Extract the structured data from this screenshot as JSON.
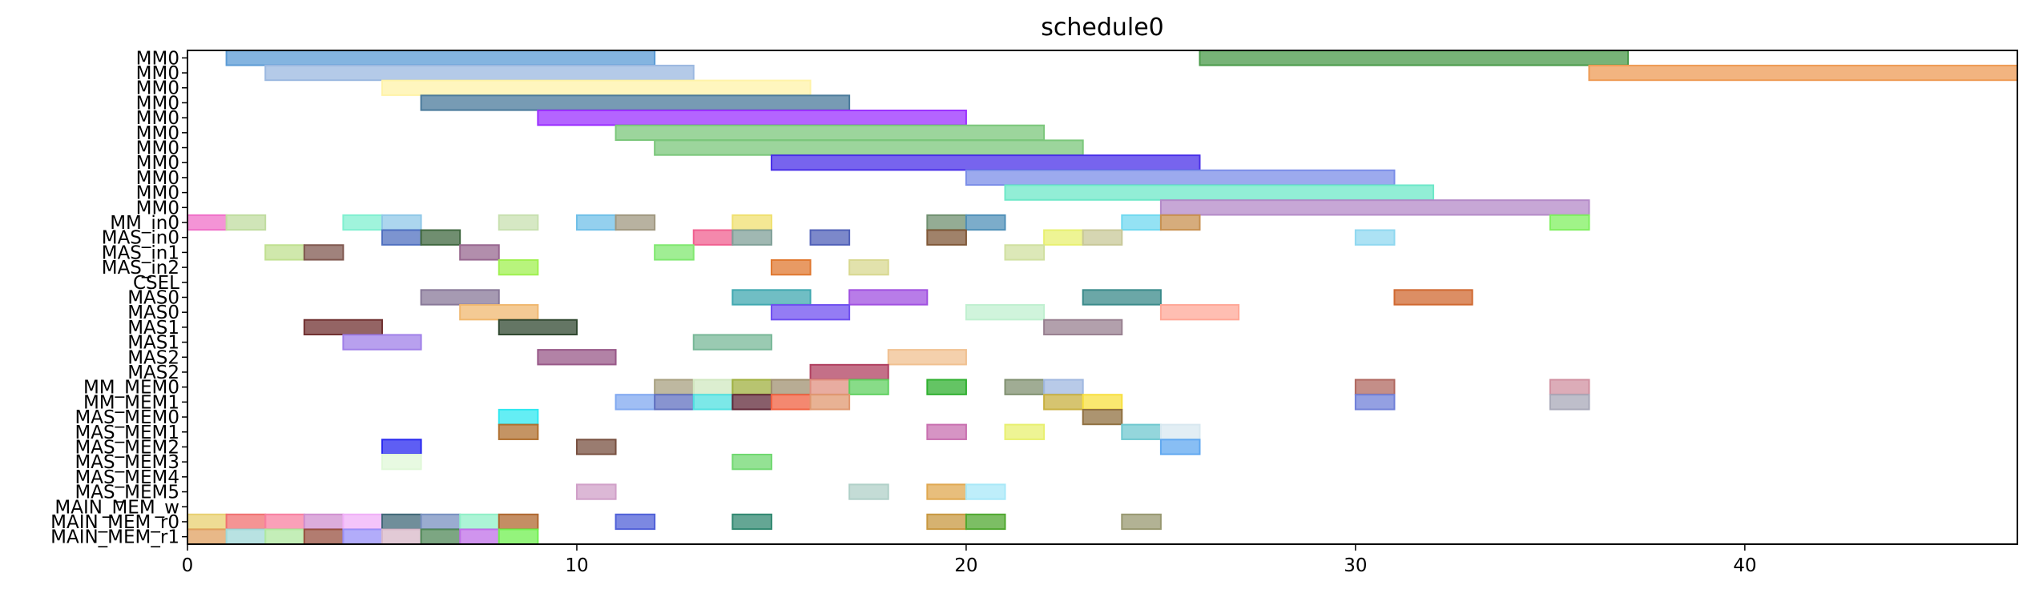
{
  "chart_data": {
    "type": "gantt",
    "title": "schedule0",
    "xlabel": "",
    "ylabel": "",
    "xlim": [
      0,
      47
    ],
    "xticks": [
      0,
      10,
      20,
      30,
      40
    ],
    "grid": false,
    "rows": [
      "MM0",
      "MM0",
      "MM0",
      "MM0",
      "MM0",
      "MM0",
      "MM0",
      "MM0",
      "MM0",
      "MM0",
      "MM0",
      "MM_in0",
      "MAS_in0",
      "MAS_in1",
      "MAS_in2",
      "CSEL",
      "MAS0",
      "MAS0",
      "MAS1",
      "MAS1",
      "MAS2",
      "MAS2",
      "MM_MEM0",
      "MM_MEM1",
      "MAS_MEM0",
      "MAS_MEM1",
      "MAS_MEM2",
      "MAS_MEM3",
      "MAS_MEM4",
      "MAS_MEM5",
      "MAIN_MEM_w",
      "MAIN_MEM_r0",
      "MAIN_MEM_r1"
    ],
    "tasks": [
      {
        "row": 0,
        "start": 1,
        "end": 12,
        "color": "#5b9bd5"
      },
      {
        "row": 0,
        "start": 26,
        "end": 37,
        "color": "#4a9a4a"
      },
      {
        "row": 1,
        "start": 2,
        "end": 13,
        "color": "#9bb8e0"
      },
      {
        "row": 1,
        "start": 36,
        "end": 47,
        "color": "#ee9b55"
      },
      {
        "row": 2,
        "start": 5,
        "end": 16,
        "color": "#fff3a8"
      },
      {
        "row": 3,
        "start": 6,
        "end": 17,
        "color": "#4a7a9b"
      },
      {
        "row": 4,
        "start": 9,
        "end": 20,
        "color": "#9b30ff"
      },
      {
        "row": 5,
        "start": 11,
        "end": 22,
        "color": "#7bc77b"
      },
      {
        "row": 6,
        "start": 12,
        "end": 23,
        "color": "#7bc77b"
      },
      {
        "row": 7,
        "start": 15,
        "end": 26,
        "color": "#4a30e8"
      },
      {
        "row": 8,
        "start": 20,
        "end": 31,
        "color": "#7b8ee8"
      },
      {
        "row": 9,
        "start": 21,
        "end": 32,
        "color": "#6ee8c8"
      },
      {
        "row": 10,
        "start": 25,
        "end": 36,
        "color": "#b48ac8"
      },
      {
        "row": 11,
        "start": 0,
        "end": 1,
        "color": "#f070c8"
      },
      {
        "row": 11,
        "start": 1,
        "end": 2,
        "color": "#c0dca0"
      },
      {
        "row": 11,
        "start": 4,
        "end": 5,
        "color": "#80f0d0"
      },
      {
        "row": 11,
        "start": 5,
        "end": 6,
        "color": "#90c8e8"
      },
      {
        "row": 11,
        "start": 8,
        "end": 9,
        "color": "#c8e0b0"
      },
      {
        "row": 11,
        "start": 10,
        "end": 11,
        "color": "#70c0e8"
      },
      {
        "row": 11,
        "start": 11,
        "end": 12,
        "color": "#a09880"
      },
      {
        "row": 11,
        "start": 14,
        "end": 15,
        "color": "#f0e070"
      },
      {
        "row": 11,
        "start": 19,
        "end": 20,
        "color": "#709070"
      },
      {
        "row": 11,
        "start": 20,
        "end": 21,
        "color": "#5090b8"
      },
      {
        "row": 11,
        "start": 24,
        "end": 25,
        "color": "#70d8f0"
      },
      {
        "row": 11,
        "start": 25,
        "end": 26,
        "color": "#c89050"
      },
      {
        "row": 11,
        "start": 35,
        "end": 36,
        "color": "#80f060"
      },
      {
        "row": 12,
        "start": 5,
        "end": 6,
        "color": "#5070c0"
      },
      {
        "row": 12,
        "start": 6,
        "end": 7,
        "color": "#406840"
      },
      {
        "row": 12,
        "start": 13,
        "end": 14,
        "color": "#f06090"
      },
      {
        "row": 12,
        "start": 14,
        "end": 15,
        "color": "#80a098"
      },
      {
        "row": 12,
        "start": 16,
        "end": 17,
        "color": "#5060b8"
      },
      {
        "row": 12,
        "start": 19,
        "end": 20,
        "color": "#805838"
      },
      {
        "row": 12,
        "start": 22,
        "end": 23,
        "color": "#e8f070"
      },
      {
        "row": 12,
        "start": 23,
        "end": 24,
        "color": "#c8c898"
      },
      {
        "row": 12,
        "start": 30,
        "end": 31,
        "color": "#90d8f0"
      },
      {
        "row": 13,
        "start": 2,
        "end": 3,
        "color": "#c0e090"
      },
      {
        "row": 13,
        "start": 3,
        "end": 4,
        "color": "#805850"
      },
      {
        "row": 13,
        "start": 7,
        "end": 8,
        "color": "#986890"
      },
      {
        "row": 13,
        "start": 12,
        "end": 13,
        "color": "#80e870"
      },
      {
        "row": 13,
        "start": 21,
        "end": 22,
        "color": "#d0e0a0"
      },
      {
        "row": 14,
        "start": 8,
        "end": 9,
        "color": "#a0f050"
      },
      {
        "row": 14,
        "start": 15,
        "end": 16,
        "color": "#e07830"
      },
      {
        "row": 14,
        "start": 17,
        "end": 18,
        "color": "#d8d890"
      },
      {
        "row": 16,
        "start": 6,
        "end": 8,
        "color": "#887898"
      },
      {
        "row": 16,
        "start": 14,
        "end": 16,
        "color": "#40a8b0"
      },
      {
        "row": 16,
        "start": 17,
        "end": 19,
        "color": "#a050e0"
      },
      {
        "row": 16,
        "start": 23,
        "end": 25,
        "color": "#3a8a8a"
      },
      {
        "row": 16,
        "start": 31,
        "end": 33,
        "color": "#d06830"
      },
      {
        "row": 17,
        "start": 7,
        "end": 9,
        "color": "#f0b870"
      },
      {
        "row": 17,
        "start": 15,
        "end": 17,
        "color": "#7050f0"
      },
      {
        "row": 17,
        "start": 20,
        "end": 22,
        "color": "#c0f0d0"
      },
      {
        "row": 17,
        "start": 25,
        "end": 27,
        "color": "#ffa898"
      },
      {
        "row": 18,
        "start": 3,
        "end": 5,
        "color": "#703030"
      },
      {
        "row": 18,
        "start": 8,
        "end": 10,
        "color": "#304830"
      },
      {
        "row": 18,
        "start": 22,
        "end": 24,
        "color": "#988090"
      },
      {
        "row": 19,
        "start": 4,
        "end": 6,
        "color": "#a080e8"
      },
      {
        "row": 19,
        "start": 13,
        "end": 15,
        "color": "#78b898"
      },
      {
        "row": 20,
        "start": 9,
        "end": 11,
        "color": "#985888"
      },
      {
        "row": 20,
        "start": 18,
        "end": 20,
        "color": "#f0c090"
      },
      {
        "row": 21,
        "start": 16,
        "end": 18,
        "color": "#b04060"
      },
      {
        "row": 22,
        "start": 12,
        "end": 13,
        "color": "#a8a080"
      },
      {
        "row": 22,
        "start": 13,
        "end": 14,
        "color": "#d0e8c0"
      },
      {
        "row": 22,
        "start": 14,
        "end": 15,
        "color": "#a0b040"
      },
      {
        "row": 22,
        "start": 15,
        "end": 16,
        "color": "#a09070"
      },
      {
        "row": 22,
        "start": 16,
        "end": 17,
        "color": "#e09080"
      },
      {
        "row": 22,
        "start": 17,
        "end": 18,
        "color": "#60d060"
      },
      {
        "row": 22,
        "start": 19,
        "end": 20,
        "color": "#30b030"
      },
      {
        "row": 22,
        "start": 21,
        "end": 22,
        "color": "#809070"
      },
      {
        "row": 22,
        "start": 22,
        "end": 23,
        "color": "#a0b8e0"
      },
      {
        "row": 22,
        "start": 30,
        "end": 31,
        "color": "#b06860"
      },
      {
        "row": 22,
        "start": 35,
        "end": 36,
        "color": "#d090a0"
      },
      {
        "row": 23,
        "start": 11,
        "end": 12,
        "color": "#80a8f0"
      },
      {
        "row": 23,
        "start": 12,
        "end": 13,
        "color": "#6070c0"
      },
      {
        "row": 23,
        "start": 13,
        "end": 14,
        "color": "#50e0e0"
      },
      {
        "row": 23,
        "start": 14,
        "end": 15,
        "color": "#602838"
      },
      {
        "row": 23,
        "start": 15,
        "end": 16,
        "color": "#f06040"
      },
      {
        "row": 23,
        "start": 16,
        "end": 17,
        "color": "#e09870"
      },
      {
        "row": 23,
        "start": 22,
        "end": 23,
        "color": "#c8b040"
      },
      {
        "row": 23,
        "start": 23,
        "end": 24,
        "color": "#f8e040"
      },
      {
        "row": 23,
        "start": 30,
        "end": 31,
        "color": "#7080d8"
      },
      {
        "row": 23,
        "start": 35,
        "end": 36,
        "color": "#a8a8b8"
      },
      {
        "row": 24,
        "start": 8,
        "end": 9,
        "color": "#30e8f0"
      },
      {
        "row": 24,
        "start": 23,
        "end": 24,
        "color": "#907040"
      },
      {
        "row": 25,
        "start": 8,
        "end": 9,
        "color": "#b07030"
      },
      {
        "row": 25,
        "start": 19,
        "end": 20,
        "color": "#c870b0"
      },
      {
        "row": 25,
        "start": 21,
        "end": 22,
        "color": "#e8f070"
      },
      {
        "row": 25,
        "start": 24,
        "end": 25,
        "color": "#70c8d0"
      },
      {
        "row": 25,
        "start": 25,
        "end": 26,
        "color": "#d8e8f0"
      },
      {
        "row": 26,
        "start": 5,
        "end": 6,
        "color": "#2828f0"
      },
      {
        "row": 26,
        "start": 10,
        "end": 11,
        "color": "#785040"
      },
      {
        "row": 26,
        "start": 25,
        "end": 26,
        "color": "#60a8f0"
      },
      {
        "row": 27,
        "start": 5,
        "end": 6,
        "color": "#e0f8d8"
      },
      {
        "row": 27,
        "start": 14,
        "end": 15,
        "color": "#70d870"
      },
      {
        "row": 29,
        "start": 10,
        "end": 11,
        "color": "#d0a0c8"
      },
      {
        "row": 29,
        "start": 17,
        "end": 18,
        "color": "#b0d0c8"
      },
      {
        "row": 29,
        "start": 19,
        "end": 20,
        "color": "#e0a850"
      },
      {
        "row": 29,
        "start": 20,
        "end": 21,
        "color": "#a8e8f8"
      },
      {
        "row": 31,
        "start": 0,
        "end": 1,
        "color": "#e8d070"
      },
      {
        "row": 31,
        "start": 1,
        "end": 2,
        "color": "#f07070"
      },
      {
        "row": 31,
        "start": 2,
        "end": 3,
        "color": "#f880a0"
      },
      {
        "row": 31,
        "start": 3,
        "end": 4,
        "color": "#d090d0"
      },
      {
        "row": 31,
        "start": 4,
        "end": 5,
        "color": "#f0b0f8"
      },
      {
        "row": 31,
        "start": 5,
        "end": 6,
        "color": "#406878"
      },
      {
        "row": 31,
        "start": 6,
        "end": 7,
        "color": "#7890c0"
      },
      {
        "row": 31,
        "start": 7,
        "end": 8,
        "color": "#90f0c8"
      },
      {
        "row": 31,
        "start": 8,
        "end": 9,
        "color": "#b06830"
      },
      {
        "row": 31,
        "start": 11,
        "end": 12,
        "color": "#5060d8"
      },
      {
        "row": 31,
        "start": 14,
        "end": 15,
        "color": "#308870"
      },
      {
        "row": 31,
        "start": 19,
        "end": 20,
        "color": "#c89840"
      },
      {
        "row": 31,
        "start": 20,
        "end": 21,
        "color": "#50a830"
      },
      {
        "row": 31,
        "start": 24,
        "end": 25,
        "color": "#989870"
      },
      {
        "row": 32,
        "start": 0,
        "end": 1,
        "color": "#e0a060"
      },
      {
        "row": 32,
        "start": 1,
        "end": 2,
        "color": "#a0d8d8"
      },
      {
        "row": 32,
        "start": 2,
        "end": 3,
        "color": "#b0e8a0"
      },
      {
        "row": 32,
        "start": 3,
        "end": 4,
        "color": "#985040"
      },
      {
        "row": 32,
        "start": 4,
        "end": 5,
        "color": "#9890f8"
      },
      {
        "row": 32,
        "start": 5,
        "end": 6,
        "color": "#d8b8c8"
      },
      {
        "row": 32,
        "start": 6,
        "end": 7,
        "color": "#508858"
      },
      {
        "row": 32,
        "start": 7,
        "end": 8,
        "color": "#c070e8"
      },
      {
        "row": 32,
        "start": 8,
        "end": 9,
        "color": "#70f050"
      }
    ]
  }
}
